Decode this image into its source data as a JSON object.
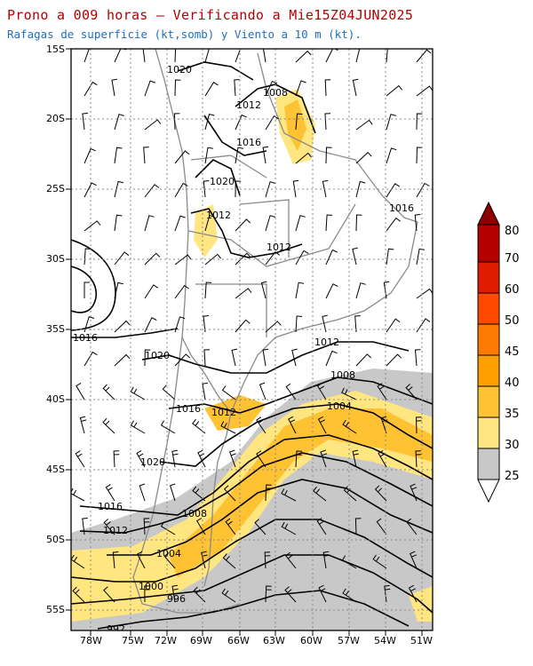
{
  "header": {
    "title": "Prono a 009 horas — Verificando a Mie15Z04JUN2025",
    "subtitle": "Rafagas de superficie (kt,somb) y Viento a 10 m (kt)."
  },
  "map": {
    "lat_labels": [
      "15S",
      "20S",
      "25S",
      "30S",
      "35S",
      "40S",
      "45S",
      "50S",
      "55S"
    ],
    "lon_labels": [
      "78W",
      "75W",
      "72W",
      "69W",
      "66W",
      "63W",
      "60W",
      "57W",
      "54W",
      "51W"
    ],
    "isobar_labels": [
      "1020",
      "1008",
      "1012",
      "1016",
      "1020",
      "1012",
      "1012",
      "1016",
      "1016",
      "1020",
      "1012",
      "1008",
      "1004",
      "1016",
      "1012",
      "1020",
      "1016",
      "1008",
      "1012",
      "1004",
      "1000",
      "996",
      "992"
    ]
  },
  "colorbar": {
    "levels": [
      "25",
      "30",
      "35",
      "40",
      "45",
      "50",
      "60",
      "70",
      "80"
    ],
    "colors": [
      "#c8c8c8",
      "#ffe680",
      "#ffc233",
      "#ff9f00",
      "#ff7a00",
      "#ff4a00",
      "#e01c00",
      "#b40000",
      "#8c0000"
    ]
  }
}
